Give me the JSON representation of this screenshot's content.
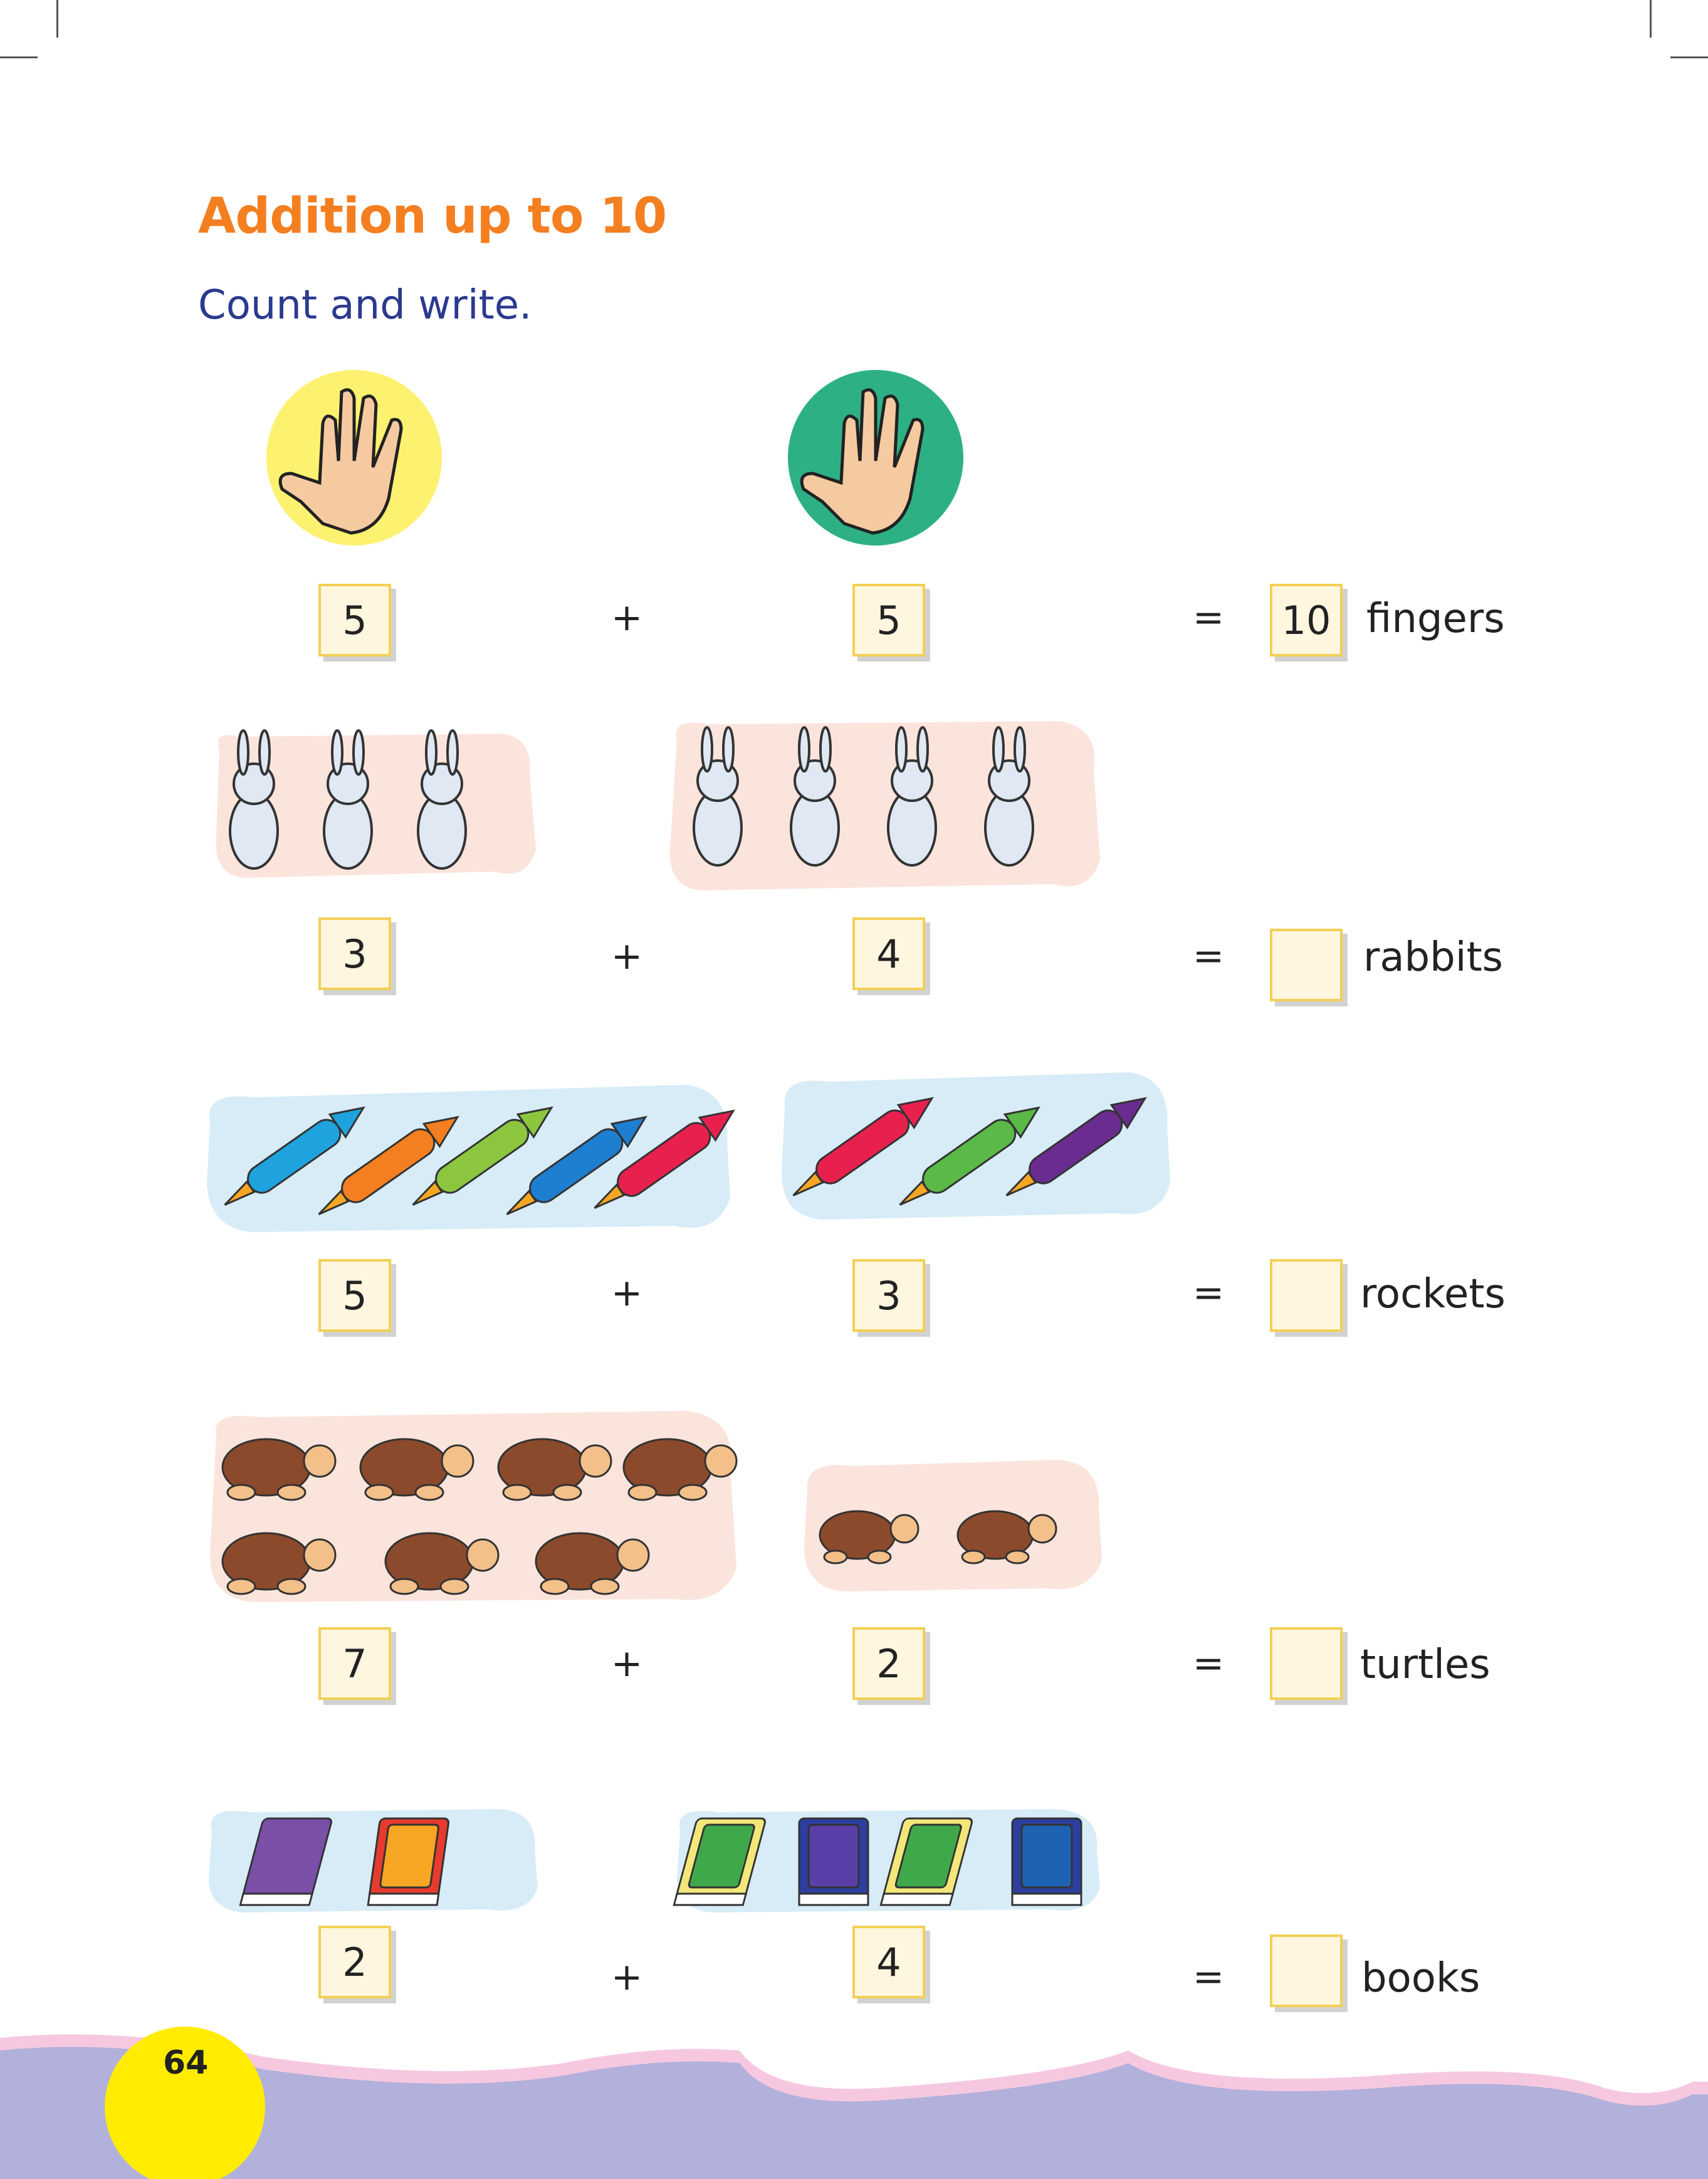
{
  "page": {
    "title": "Addition up to 10",
    "instruction": "Count and write.",
    "page_number": "64"
  },
  "rows": [
    {
      "a": "5",
      "b": "5",
      "plus": "+",
      "equals": "=",
      "answer": "10",
      "unit": "fingers",
      "icon": "hand-icon"
    },
    {
      "a": "3",
      "b": "4",
      "plus": "+",
      "equals": "=",
      "answer": "",
      "unit": "rabbits",
      "icon": "rabbit-icon"
    },
    {
      "a": "5",
      "b": "3",
      "plus": "+",
      "equals": "=",
      "answer": "",
      "unit": "rockets",
      "icon": "rocket-icon"
    },
    {
      "a": "7",
      "b": "2",
      "plus": "+",
      "equals": "=",
      "answer": "",
      "unit": "turtles",
      "icon": "turtle-icon"
    },
    {
      "a": "2",
      "b": "4",
      "plus": "+",
      "equals": "=",
      "answer": "",
      "unit": "books",
      "icon": "book-icon"
    }
  ],
  "colors": {
    "title": "#f47f20",
    "instruction": "#2b3a8f",
    "box_fill": "#fff6df",
    "box_border": "#f2d055",
    "wave": "#b2b1db",
    "page_circle": "#ffec00"
  }
}
